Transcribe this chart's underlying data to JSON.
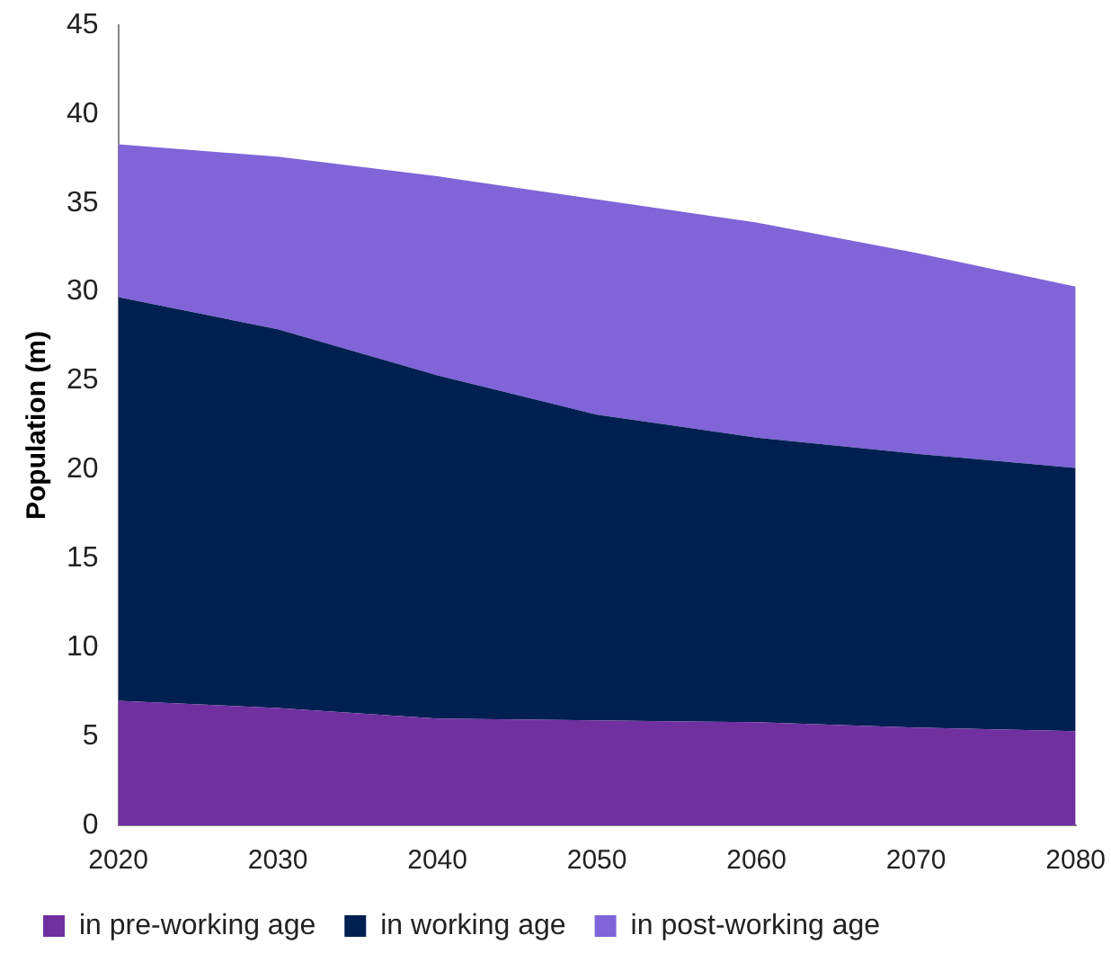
{
  "chart_data": {
    "type": "area",
    "stacked": true,
    "ylabel": "Population (m)",
    "categories": [
      "2020",
      "2030",
      "2040",
      "2050",
      "2060",
      "2070",
      "2080"
    ],
    "series": [
      {
        "name": "in pre-working age",
        "color": "#7030a0",
        "values": [
          7.0,
          6.6,
          6.0,
          5.9,
          5.8,
          5.5,
          5.3
        ]
      },
      {
        "name": "in working age",
        "color": "#002052",
        "values": [
          22.7,
          21.3,
          19.3,
          17.2,
          16.0,
          15.4,
          14.8
        ]
      },
      {
        "name": "in post-working age",
        "color": "#8064d8",
        "values": [
          8.6,
          9.7,
          11.2,
          12.1,
          12.1,
          11.3,
          10.2
        ]
      }
    ],
    "ylim": [
      0,
      45
    ],
    "yticks": [
      0,
      5,
      10,
      15,
      20,
      25,
      30,
      35,
      40,
      45
    ],
    "grid": false,
    "legend": "bottom"
  }
}
